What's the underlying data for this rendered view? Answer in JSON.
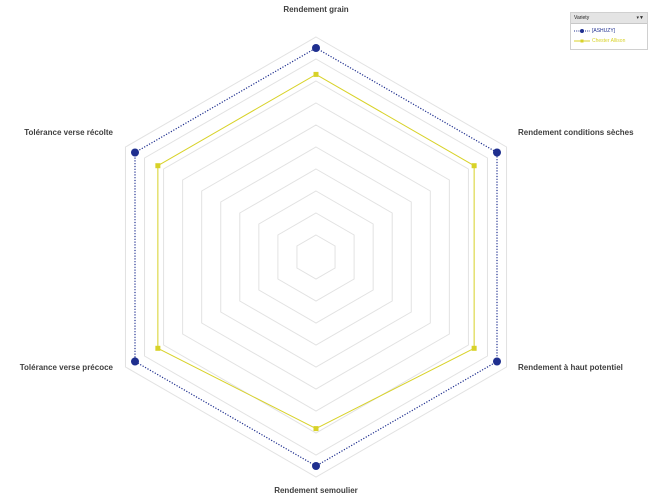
{
  "chart_data": {
    "type": "radar",
    "axes": [
      "Rendement grain",
      "Rendement conditions sèches",
      "Rendement à haut potentiel",
      "Rendement semoulier",
      "Tolérance verse précoce",
      "Tolérance verse récolte"
    ],
    "series": [
      {
        "name": "[ASHUZY]",
        "values": [
          9.5,
          9.5,
          9.5,
          9.5,
          9.5,
          9.5
        ],
        "color": "#1f2f8f",
        "line_style": "dotted",
        "marker": "circle"
      },
      {
        "name": "Chester Allison",
        "values": [
          8.3,
          8.3,
          8.3,
          7.8,
          8.3,
          8.3
        ],
        "color": "#d8d228",
        "line_style": "solid",
        "marker": "square"
      }
    ],
    "rlim": [
      0,
      10
    ],
    "grid_rings": 10,
    "grid": true,
    "legend_placement": "top-right"
  },
  "legend": {
    "title": "Variety",
    "filter_icon": "filter-icon"
  },
  "colors": {
    "grid": "#e2e2e2",
    "axis_label": "#404040"
  }
}
